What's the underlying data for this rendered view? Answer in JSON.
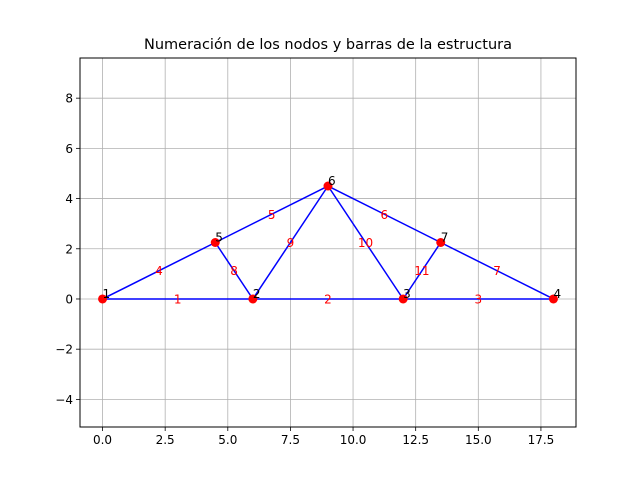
{
  "chart_data": {
    "type": "scatter",
    "title": "Numeración de los nodos y barras de la estructura",
    "xlabel": "",
    "ylabel": "",
    "xlim": [
      -0.9,
      18.9
    ],
    "ylim": [
      -5.1,
      9.6
    ],
    "grid": true,
    "x_ticks": [
      0.0,
      2.5,
      5.0,
      7.5,
      10.0,
      12.5,
      15.0,
      17.5
    ],
    "x_tick_labels": [
      "0.0",
      "2.5",
      "5.0",
      "7.5",
      "10.0",
      "12.5",
      "15.0",
      "17.5"
    ],
    "y_ticks": [
      -4,
      -2,
      0,
      2,
      4,
      6,
      8
    ],
    "y_tick_labels": [
      "−4",
      "−2",
      "0",
      "2",
      "4",
      "6",
      "8"
    ],
    "colors": {
      "member": "#0000ff",
      "node": "#ff0000",
      "node_label": "#000000",
      "member_label": "#ff0000"
    },
    "nodes": [
      {
        "id": "1",
        "x": 0,
        "y": 0
      },
      {
        "id": "2",
        "x": 6,
        "y": 0
      },
      {
        "id": "3",
        "x": 12,
        "y": 0
      },
      {
        "id": "4",
        "x": 18,
        "y": 0
      },
      {
        "id": "5",
        "x": 4.5,
        "y": 2.25
      },
      {
        "id": "6",
        "x": 9,
        "y": 4.5
      },
      {
        "id": "7",
        "x": 13.5,
        "y": 2.25
      }
    ],
    "members": [
      {
        "id": "1",
        "from": 1,
        "to": 2
      },
      {
        "id": "2",
        "from": 2,
        "to": 3
      },
      {
        "id": "3",
        "from": 3,
        "to": 4
      },
      {
        "id": "4",
        "from": 1,
        "to": 5
      },
      {
        "id": "5",
        "from": 5,
        "to": 6
      },
      {
        "id": "6",
        "from": 6,
        "to": 7
      },
      {
        "id": "7",
        "from": 7,
        "to": 4
      },
      {
        "id": "8",
        "from": 5,
        "to": 2
      },
      {
        "id": "9",
        "from": 2,
        "to": 6
      },
      {
        "id": "10",
        "from": 6,
        "to": 3
      },
      {
        "id": "11",
        "from": 3,
        "to": 7
      }
    ]
  }
}
